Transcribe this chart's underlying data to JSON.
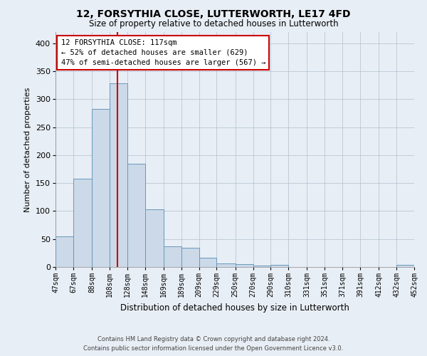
{
  "title": "12, FORSYTHIA CLOSE, LUTTERWORTH, LE17 4FD",
  "subtitle": "Size of property relative to detached houses in Lutterworth",
  "xlabel": "Distribution of detached houses by size in Lutterworth",
  "ylabel": "Number of detached properties",
  "property_size": 117,
  "property_label": "12 FORSYTHIA CLOSE: 117sqm",
  "annotation_line1": "← 52% of detached houses are smaller (629)",
  "annotation_line2": "47% of semi-detached houses are larger (567) →",
  "footer_line1": "Contains HM Land Registry data © Crown copyright and database right 2024.",
  "footer_line2": "Contains public sector information licensed under the Open Government Licence v3.0.",
  "bar_color": "#ccd9e8",
  "bar_edge_color": "#6699bb",
  "vline_color": "#cc0000",
  "background_color": "#e8eef5",
  "annotation_box_facecolor": "#ffffff",
  "annotation_border_color": "#cc0000",
  "grid_color": "#b0bfcc",
  "bins": [
    "47sqm",
    "67sqm",
    "88sqm",
    "108sqm",
    "128sqm",
    "148sqm",
    "169sqm",
    "189sqm",
    "209sqm",
    "229sqm",
    "250sqm",
    "270sqm",
    "290sqm",
    "310sqm",
    "331sqm",
    "351sqm",
    "371sqm",
    "391sqm",
    "412sqm",
    "432sqm",
    "452sqm"
  ],
  "bin_edges": [
    47,
    67,
    88,
    108,
    128,
    148,
    169,
    189,
    209,
    229,
    250,
    270,
    290,
    310,
    331,
    351,
    371,
    391,
    412,
    432,
    452
  ],
  "values": [
    55,
    158,
    283,
    328,
    184,
    103,
    37,
    34,
    16,
    7,
    5,
    3,
    4,
    0,
    0,
    0,
    0,
    0,
    0,
    4
  ],
  "ylim": [
    0,
    420
  ],
  "yticks": [
    0,
    50,
    100,
    150,
    200,
    250,
    300,
    350,
    400
  ]
}
